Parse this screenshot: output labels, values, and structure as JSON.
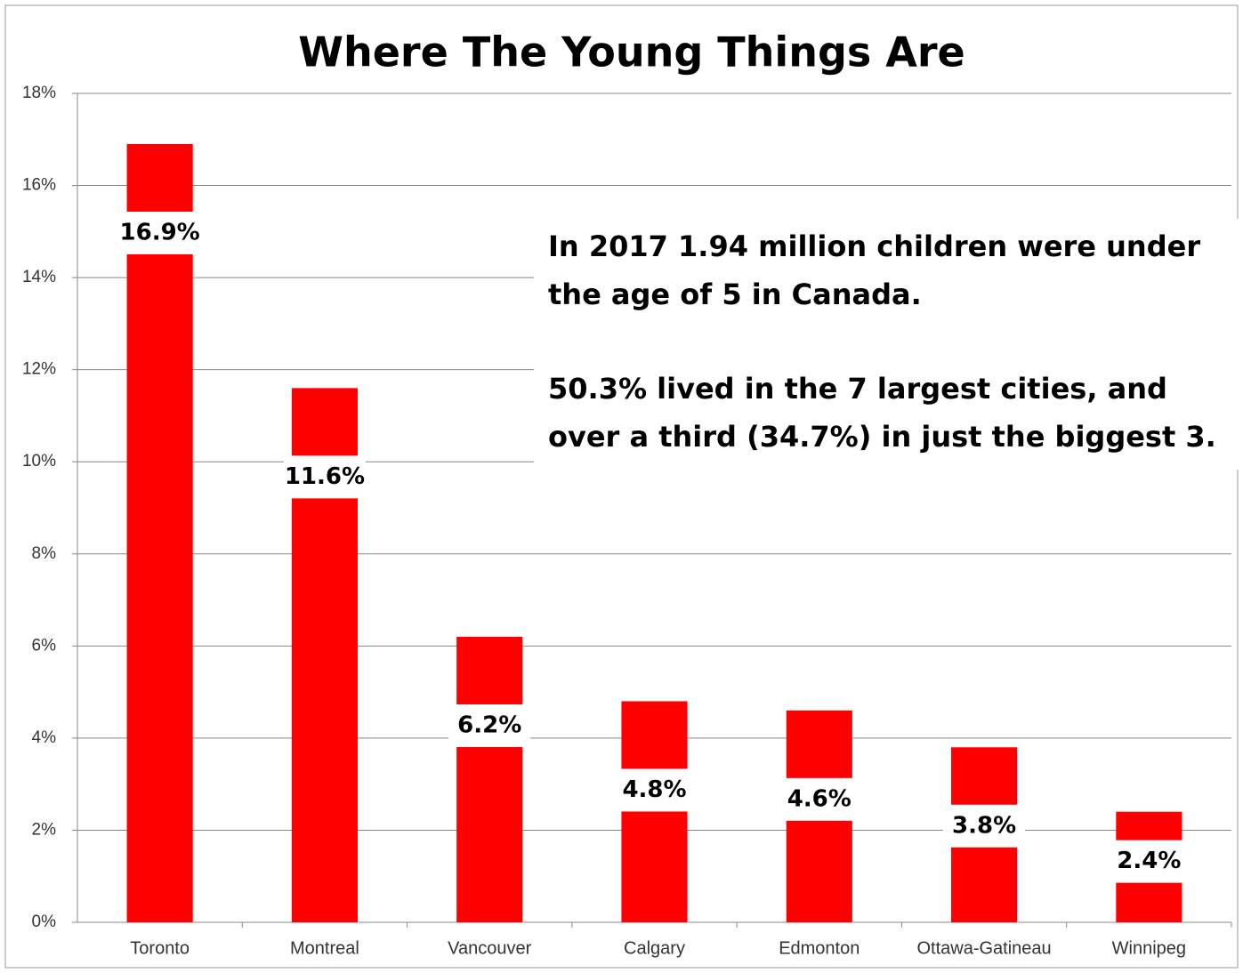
{
  "chart_data": {
    "type": "bar",
    "title": "Where The Young Things Are",
    "categories": [
      "Toronto",
      "Montreal",
      "Vancouver",
      "Calgary",
      "Edmonton",
      "Ottawa-Gatineau",
      "Winnipeg"
    ],
    "values": [
      16.9,
      11.6,
      6.2,
      4.8,
      4.6,
      3.8,
      2.4
    ],
    "value_labels": [
      "16.9%",
      "11.6%",
      "6.2%",
      "4.8%",
      "4.6%",
      "3.8%",
      "2.4%"
    ],
    "color": "#ff0000",
    "ylim": [
      0,
      18
    ],
    "yticks": [
      {
        "value": 0,
        "label": "0%"
      },
      {
        "value": 2,
        "label": "2%"
      },
      {
        "value": 4,
        "label": "4%"
      },
      {
        "value": 6,
        "label": "6%"
      },
      {
        "value": 8,
        "label": "8%"
      },
      {
        "value": 10,
        "label": "10%"
      },
      {
        "value": 12,
        "label": "12%"
      },
      {
        "value": 14,
        "label": "14%"
      },
      {
        "value": 16,
        "label": "16%"
      },
      {
        "value": 18,
        "label": "18%"
      }
    ],
    "grid": true,
    "annotations": [
      "In 2017 1.94 million children were under the age of 5 in Canada.",
      "50.3% lived in the 7 largest cities, and over a third (34.7%) in just the biggest 3."
    ]
  }
}
